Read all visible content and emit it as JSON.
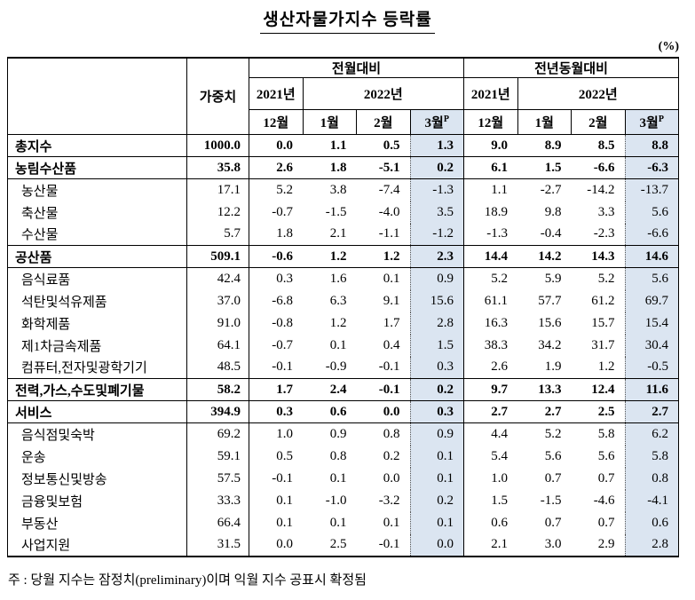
{
  "page": {
    "title": "생산자물가지수 등락률",
    "unit_note": "(%)",
    "footnote": "주 : 당월 지수는 잠정치(preliminary)이며 익월 지수 공표시 확정됨"
  },
  "colors": {
    "highlight": "#dbe5f1"
  },
  "table": {
    "header": {
      "weight_label": "가중치",
      "mom_label": "전월대비",
      "yoy_label": "전년동월대비",
      "year_2021": "2021년",
      "year_2022": "2022년",
      "month_dec": "12월",
      "month_jan": "1월",
      "month_feb": "2월",
      "month_mar": "3월",
      "preliminary_mark": "P"
    },
    "rows": [
      {
        "label": "총지수",
        "bold": true,
        "sub": false,
        "rule": true,
        "weight": "1000.0",
        "mom": [
          "0.0",
          "1.1",
          "0.5",
          "1.3"
        ],
        "yoy": [
          "9.0",
          "8.9",
          "8.5",
          "8.8"
        ]
      },
      {
        "label": "농림수산품",
        "bold": true,
        "sub": false,
        "rule": true,
        "weight": "35.8",
        "mom": [
          "2.6",
          "1.8",
          "-5.1",
          "0.2"
        ],
        "yoy": [
          "6.1",
          "1.5",
          "-6.6",
          "-6.3"
        ]
      },
      {
        "label": "농산물",
        "bold": false,
        "sub": true,
        "rule": false,
        "weight": "17.1",
        "mom": [
          "5.2",
          "3.8",
          "-7.4",
          "-1.3"
        ],
        "yoy": [
          "1.1",
          "-2.7",
          "-14.2",
          "-13.7"
        ]
      },
      {
        "label": "축산물",
        "bold": false,
        "sub": true,
        "rule": false,
        "weight": "12.2",
        "mom": [
          "-0.7",
          "-1.5",
          "-4.0",
          "3.5"
        ],
        "yoy": [
          "18.9",
          "9.8",
          "3.3",
          "5.6"
        ]
      },
      {
        "label": "수산물",
        "bold": false,
        "sub": true,
        "rule": true,
        "weight": "5.7",
        "mom": [
          "1.8",
          "2.1",
          "-1.1",
          "-1.2"
        ],
        "yoy": [
          "-1.3",
          "-0.4",
          "-2.3",
          "-6.6"
        ]
      },
      {
        "label": "공산품",
        "bold": true,
        "sub": false,
        "rule": true,
        "weight": "509.1",
        "mom": [
          "-0.6",
          "1.2",
          "1.2",
          "2.3"
        ],
        "yoy": [
          "14.4",
          "14.2",
          "14.3",
          "14.6"
        ]
      },
      {
        "label": "음식료품",
        "bold": false,
        "sub": true,
        "rule": false,
        "weight": "42.4",
        "mom": [
          "0.3",
          "1.6",
          "0.1",
          "0.9"
        ],
        "yoy": [
          "5.2",
          "5.9",
          "5.2",
          "5.6"
        ]
      },
      {
        "label": "석탄및석유제품",
        "bold": false,
        "sub": true,
        "rule": false,
        "weight": "37.0",
        "mom": [
          "-6.8",
          "6.3",
          "9.1",
          "15.6"
        ],
        "yoy": [
          "61.1",
          "57.7",
          "61.2",
          "69.7"
        ]
      },
      {
        "label": "화학제품",
        "bold": false,
        "sub": true,
        "rule": false,
        "weight": "91.0",
        "mom": [
          "-0.8",
          "1.2",
          "1.7",
          "2.8"
        ],
        "yoy": [
          "16.3",
          "15.6",
          "15.7",
          "15.4"
        ]
      },
      {
        "label": "제1차금속제품",
        "bold": false,
        "sub": true,
        "rule": false,
        "weight": "64.1",
        "mom": [
          "-0.7",
          "0.1",
          "0.4",
          "1.5"
        ],
        "yoy": [
          "38.3",
          "34.2",
          "31.7",
          "30.4"
        ]
      },
      {
        "label": "컴퓨터,전자및광학기기",
        "bold": false,
        "sub": true,
        "rule": true,
        "weight": "48.5",
        "mom": [
          "-0.1",
          "-0.9",
          "-0.1",
          "0.3"
        ],
        "yoy": [
          "2.6",
          "1.9",
          "1.2",
          "-0.5"
        ]
      },
      {
        "label": "전력,가스,수도및폐기물",
        "bold": true,
        "sub": false,
        "rule": true,
        "weight": "58.2",
        "mom": [
          "1.7",
          "2.4",
          "-0.1",
          "0.2"
        ],
        "yoy": [
          "9.7",
          "13.3",
          "12.4",
          "11.6"
        ]
      },
      {
        "label": "서비스",
        "bold": true,
        "sub": false,
        "rule": true,
        "weight": "394.9",
        "mom": [
          "0.3",
          "0.6",
          "0.0",
          "0.3"
        ],
        "yoy": [
          "2.7",
          "2.7",
          "2.5",
          "2.7"
        ]
      },
      {
        "label": "음식점및숙박",
        "bold": false,
        "sub": true,
        "rule": false,
        "weight": "69.2",
        "mom": [
          "1.0",
          "0.9",
          "0.8",
          "0.9"
        ],
        "yoy": [
          "4.4",
          "5.2",
          "5.8",
          "6.2"
        ]
      },
      {
        "label": "운송",
        "bold": false,
        "sub": true,
        "rule": false,
        "weight": "59.1",
        "mom": [
          "0.5",
          "0.8",
          "0.2",
          "0.1"
        ],
        "yoy": [
          "5.4",
          "5.6",
          "5.6",
          "5.8"
        ]
      },
      {
        "label": "정보통신및방송",
        "bold": false,
        "sub": true,
        "rule": false,
        "weight": "57.5",
        "mom": [
          "-0.1",
          "0.1",
          "0.0",
          "0.1"
        ],
        "yoy": [
          "1.0",
          "0.7",
          "0.7",
          "0.8"
        ]
      },
      {
        "label": "금융및보험",
        "bold": false,
        "sub": true,
        "rule": false,
        "weight": "33.3",
        "mom": [
          "0.1",
          "-1.0",
          "-3.2",
          "0.2"
        ],
        "yoy": [
          "1.5",
          "-1.5",
          "-4.6",
          "-4.1"
        ]
      },
      {
        "label": "부동산",
        "bold": false,
        "sub": true,
        "rule": false,
        "weight": "66.4",
        "mom": [
          "0.1",
          "0.1",
          "0.1",
          "0.1"
        ],
        "yoy": [
          "0.6",
          "0.7",
          "0.7",
          "0.6"
        ]
      },
      {
        "label": "사업지원",
        "bold": false,
        "sub": true,
        "rule": false,
        "weight": "31.5",
        "mom": [
          "0.0",
          "2.5",
          "-0.1",
          "0.0"
        ],
        "yoy": [
          "2.1",
          "3.0",
          "2.9",
          "2.8"
        ]
      }
    ]
  }
}
